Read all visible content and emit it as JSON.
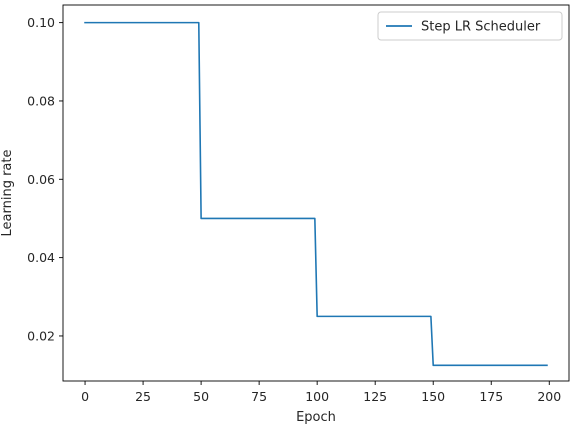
{
  "chart_data": {
    "type": "line",
    "title": "",
    "xlabel": "Epoch",
    "ylabel": "Learning rate",
    "xlim": [
      -9.5,
      208.5
    ],
    "ylim": [
      0.0085,
      0.1045
    ],
    "xticks": [
      0,
      25,
      50,
      75,
      100,
      125,
      150,
      175,
      200
    ],
    "xtick_labels": [
      "0",
      "25",
      "50",
      "75",
      "100",
      "125",
      "150",
      "175",
      "200"
    ],
    "yticks": [
      0.02,
      0.04,
      0.06,
      0.08,
      0.1
    ],
    "ytick_labels": [
      "0.02",
      "0.04",
      "0.06",
      "0.08",
      "0.10"
    ],
    "grid": false,
    "legend_position": "top-right",
    "series": [
      {
        "name": "Step LR Scheduler",
        "color": "#1f77b4",
        "x": [
          0,
          49,
          50,
          99,
          100,
          149,
          150,
          199
        ],
        "y": [
          0.1,
          0.1,
          0.05,
          0.05,
          0.025,
          0.025,
          0.0125,
          0.0125
        ]
      }
    ]
  }
}
